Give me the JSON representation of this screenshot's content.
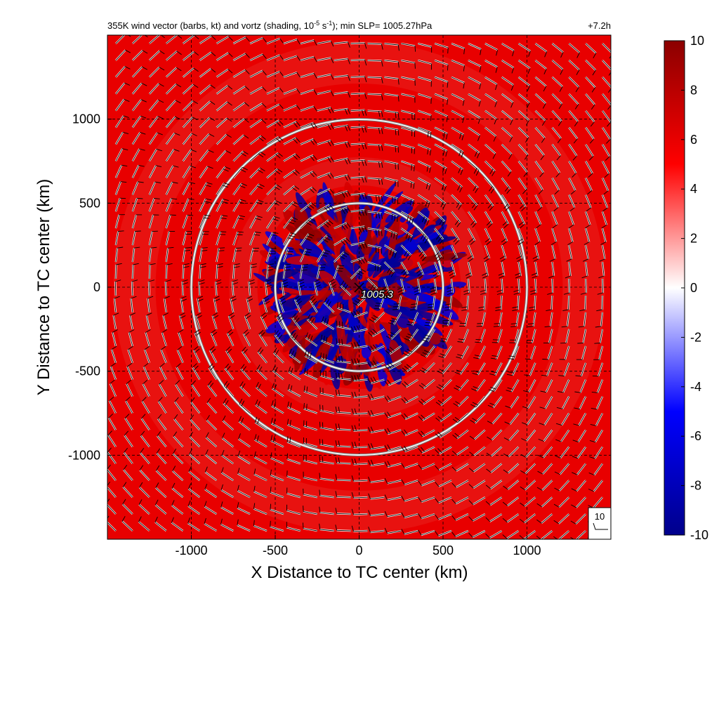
{
  "chart_data": {
    "type": "heatmap",
    "title_main": "355K wind vector (barbs, kt) and vortz (shading, 10",
    "title_exp1": "-5",
    "title_mid": " s",
    "title_exp2": "-1",
    "title_end": "); min SLP= 1005.27hPa",
    "time_label": "+7.2h",
    "xlabel": "X Distance to TC center (km)",
    "ylabel": "Y Distance to TC center (km)",
    "xlim": [
      -1500,
      1500
    ],
    "ylim": [
      -1500,
      1500
    ],
    "x_ticks": [
      -1000,
      -500,
      0,
      500,
      1000
    ],
    "y_ticks": [
      -1000,
      -500,
      0,
      500,
      1000
    ],
    "x_tick_labels": [
      "-1000",
      "-500",
      "0",
      "500",
      "1000"
    ],
    "y_tick_labels": [
      "-1000",
      "-500",
      "0",
      "500",
      "1000"
    ],
    "grid": true,
    "colorbar": {
      "min": -10,
      "max": 10,
      "ticks": [
        10,
        8,
        6,
        4,
        2,
        0,
        -2,
        -4,
        -6,
        -8,
        -10
      ],
      "tick_labels": [
        "10",
        "8",
        "6",
        "4",
        "2",
        "0",
        "-2",
        "-4",
        "-6",
        "-8",
        "-10"
      ],
      "colors": [
        "#00008b",
        "#0000ff",
        "#ffffff",
        "#ff0000",
        "#8b0000"
      ]
    },
    "background_vorticity": 6,
    "range_circles_km": [
      500,
      1000
    ],
    "center_marker": {
      "x": 0,
      "y": 0,
      "label": "1005.3"
    },
    "reference_barb_label": "10",
    "barb_grid_spacing_km": 100
  }
}
